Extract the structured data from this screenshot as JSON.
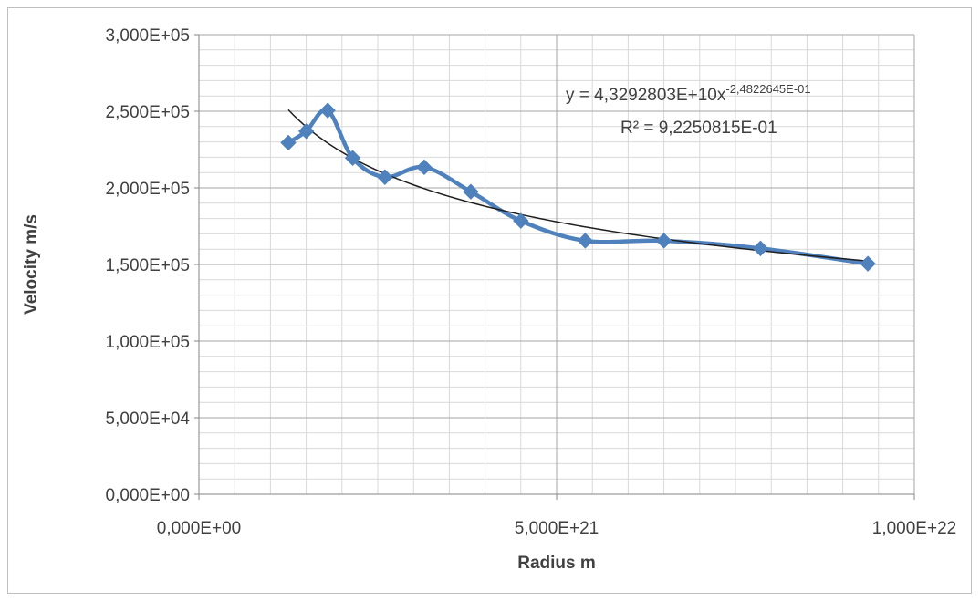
{
  "chart_data": {
    "type": "scatter",
    "xlabel": "Radius m",
    "ylabel": "Velocity m/s",
    "xlim": [
      0,
      1e+22
    ],
    "ylim": [
      0,
      300000
    ],
    "x_ticks": [
      0,
      5e+21,
      1e+22
    ],
    "x_tick_labels": [
      "0,000E+00",
      "5,000E+21",
      "1,000E+22"
    ],
    "x_minor_gridlines": 10,
    "y_ticks": [
      0,
      50000,
      100000,
      150000,
      200000,
      250000,
      300000
    ],
    "y_tick_labels": [
      "0,000E+00",
      "5,000E+04",
      "1,000E+05",
      "1,500E+05",
      "2,000E+05",
      "2,500E+05",
      "3,000E+05"
    ],
    "y_minor_gridlines": 5,
    "grid": true,
    "legend": "none",
    "series": [
      {
        "style": "smoothed line with diamond markers",
        "color": "#4f81bd",
        "x": [
          1.25e+21,
          1.5e+21,
          1.8e+21,
          2.15e+21,
          2.6e+21,
          3.15e+21,
          3.8e+21,
          4.5e+21,
          5.4e+21,
          6.5e+21,
          7.85e+21,
          9.35e+21
        ],
        "y": [
          229500,
          237000,
          250500,
          219500,
          207000,
          213500,
          197500,
          178500,
          165500,
          165500,
          160500,
          150500
        ]
      }
    ],
    "trendline": {
      "type": "power",
      "color": "#1f1f1f",
      "coefficient": 43292803000,
      "exponent": -0.24822645,
      "x_range": [
        1.25e+21,
        9.35e+21
      ],
      "equation_main": "y = 4,3292803E+10x",
      "equation_exponent": "-2,4822645E-01",
      "r_squared": "R² = 9,2250815E-01"
    }
  }
}
